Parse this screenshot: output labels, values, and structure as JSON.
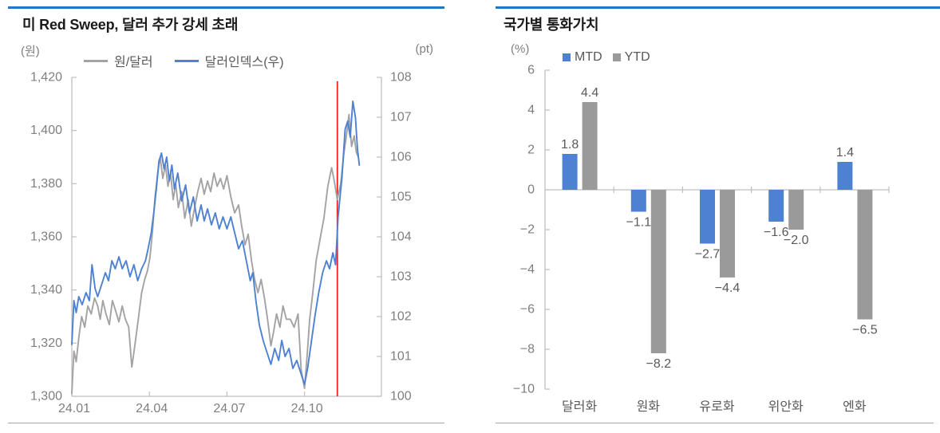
{
  "colors": {
    "accent_rule_blue": "#2577c4",
    "series_blue": "#4e81d2",
    "series_gray": "#9e9e9e",
    "annotation_red": "#ea2121",
    "axis_line": "#bfbfbf",
    "tick_label": "#7f7f7f",
    "value_label": "#595959"
  },
  "chart_data": [
    {
      "type": "line",
      "title": "미 Red Sweep, 달러 추가 강세 초래",
      "left_axis": {
        "unit": "(원)",
        "min": 1300,
        "max": 1420,
        "ticks": [
          [
            "1,420",
            1420
          ],
          [
            "1,400",
            1400
          ],
          [
            "1,380",
            1380
          ],
          [
            "1,360",
            1360
          ],
          [
            "1,340",
            1340
          ],
          [
            "1,320",
            1320
          ],
          [
            "1,300",
            1300
          ]
        ]
      },
      "right_axis": {
        "unit": "(pt)",
        "min": 100,
        "max": 108,
        "ticks": [
          [
            "108",
            108
          ],
          [
            "107",
            107
          ],
          [
            "106",
            106
          ],
          [
            "105",
            105
          ],
          [
            "104",
            104
          ],
          [
            "103",
            103
          ],
          [
            "102",
            102
          ],
          [
            "101",
            101
          ],
          [
            "100",
            100
          ]
        ]
      },
      "x_axis": {
        "ticks": [
          [
            "24.01",
            0
          ],
          [
            "24.04",
            3
          ],
          [
            "24.07",
            6
          ],
          [
            "24.10",
            9
          ]
        ]
      },
      "annotation_vline": {
        "t": 10.27,
        "color": "#ea2121"
      },
      "series": [
        {
          "name": "원/달러",
          "axis": "left",
          "color": "#a3a3a3",
          "points": [
            [
              0,
              1301
            ],
            [
              0.08,
              1317
            ],
            [
              0.17,
              1313
            ],
            [
              0.27,
              1322
            ],
            [
              0.38,
              1330
            ],
            [
              0.5,
              1326
            ],
            [
              0.62,
              1334
            ],
            [
              0.75,
              1331
            ],
            [
              0.88,
              1337
            ],
            [
              1.0,
              1334
            ],
            [
              1.1,
              1329
            ],
            [
              1.2,
              1336
            ],
            [
              1.32,
              1331
            ],
            [
              1.45,
              1327
            ],
            [
              1.57,
              1336
            ],
            [
              1.7,
              1332
            ],
            [
              1.82,
              1328
            ],
            [
              1.95,
              1334
            ],
            [
              2.07,
              1329
            ],
            [
              2.2,
              1326
            ],
            [
              2.32,
              1311
            ],
            [
              2.45,
              1320
            ],
            [
              2.57,
              1329
            ],
            [
              2.7,
              1339
            ],
            [
              2.82,
              1344
            ],
            [
              2.92,
              1347
            ],
            [
              3.02,
              1352
            ],
            [
              3.12,
              1362
            ],
            [
              3.22,
              1375
            ],
            [
              3.32,
              1384
            ],
            [
              3.42,
              1390
            ],
            [
              3.52,
              1382
            ],
            [
              3.62,
              1387
            ],
            [
              3.72,
              1379
            ],
            [
              3.82,
              1384
            ],
            [
              3.92,
              1374
            ],
            [
              4.02,
              1380
            ],
            [
              4.12,
              1371
            ],
            [
              4.25,
              1377
            ],
            [
              4.37,
              1367
            ],
            [
              4.5,
              1374
            ],
            [
              4.62,
              1364
            ],
            [
              4.75,
              1371
            ],
            [
              4.87,
              1377
            ],
            [
              5.0,
              1382
            ],
            [
              5.12,
              1376
            ],
            [
              5.25,
              1381
            ],
            [
              5.37,
              1377
            ],
            [
              5.5,
              1384
            ],
            [
              5.62,
              1379
            ],
            [
              5.75,
              1382
            ],
            [
              5.87,
              1378
            ],
            [
              6.0,
              1383
            ],
            [
              6.15,
              1375
            ],
            [
              6.3,
              1369
            ],
            [
              6.45,
              1372
            ],
            [
              6.57,
              1364
            ],
            [
              6.7,
              1357
            ],
            [
              6.82,
              1361
            ],
            [
              6.95,
              1351
            ],
            [
              7.07,
              1344
            ],
            [
              7.2,
              1339
            ],
            [
              7.32,
              1344
            ],
            [
              7.45,
              1337
            ],
            [
              7.57,
              1329
            ],
            [
              7.7,
              1319
            ],
            [
              7.8,
              1324
            ],
            [
              7.92,
              1331
            ],
            [
              8.05,
              1326
            ],
            [
              8.17,
              1334
            ],
            [
              8.3,
              1329
            ],
            [
              8.45,
              1329
            ],
            [
              8.6,
              1326
            ],
            [
              8.75,
              1331
            ],
            [
              8.87,
              1310
            ],
            [
              9.0,
              1303
            ],
            [
              9.1,
              1315
            ],
            [
              9.2,
              1329
            ],
            [
              9.32,
              1339
            ],
            [
              9.45,
              1351
            ],
            [
              9.6,
              1359
            ],
            [
              9.75,
              1367
            ],
            [
              9.9,
              1379
            ],
            [
              10.05,
              1386
            ],
            [
              10.15,
              1381
            ],
            [
              10.27,
              1374
            ],
            [
              10.4,
              1380
            ],
            [
              10.52,
              1391
            ],
            [
              10.62,
              1398
            ],
            [
              10.72,
              1406
            ],
            [
              10.82,
              1394
            ],
            [
              10.92,
              1398
            ],
            [
              11.0,
              1392
            ],
            [
              11.08,
              1390
            ]
          ]
        },
        {
          "name": "달러인덱스(우)",
          "axis": "right",
          "color": "#4e81d2",
          "points": [
            [
              0,
              101.3
            ],
            [
              0.08,
              102.4
            ],
            [
              0.17,
              102.1
            ],
            [
              0.27,
              102.5
            ],
            [
              0.4,
              102.3
            ],
            [
              0.55,
              102.6
            ],
            [
              0.68,
              102.4
            ],
            [
              0.78,
              103.3
            ],
            [
              0.9,
              102.7
            ],
            [
              1.0,
              102.5
            ],
            [
              1.15,
              102.8
            ],
            [
              1.3,
              103.1
            ],
            [
              1.42,
              102.9
            ],
            [
              1.55,
              103.4
            ],
            [
              1.68,
              103.2
            ],
            [
              1.82,
              103.5
            ],
            [
              1.95,
              103.2
            ],
            [
              2.1,
              103.4
            ],
            [
              2.25,
              103.0
            ],
            [
              2.4,
              103.3
            ],
            [
              2.55,
              102.9
            ],
            [
              2.7,
              103.2
            ],
            [
              2.85,
              103.4
            ],
            [
              2.95,
              103.7
            ],
            [
              3.07,
              104.1
            ],
            [
              3.17,
              104.6
            ],
            [
              3.27,
              105.2
            ],
            [
              3.37,
              105.9
            ],
            [
              3.47,
              106.1
            ],
            [
              3.57,
              105.7
            ],
            [
              3.67,
              106.0
            ],
            [
              3.77,
              105.4
            ],
            [
              3.87,
              105.8
            ],
            [
              3.97,
              105.2
            ],
            [
              4.1,
              105.6
            ],
            [
              4.25,
              104.9
            ],
            [
              4.4,
              105.3
            ],
            [
              4.55,
              104.6
            ],
            [
              4.7,
              105.0
            ],
            [
              4.85,
              104.4
            ],
            [
              5.0,
              104.8
            ],
            [
              5.12,
              104.4
            ],
            [
              5.25,
              104.7
            ],
            [
              5.4,
              104.3
            ],
            [
              5.55,
              104.6
            ],
            [
              5.7,
              104.2
            ],
            [
              5.85,
              104.5
            ],
            [
              6.0,
              104.2
            ],
            [
              6.15,
              104.5
            ],
            [
              6.3,
              104.1
            ],
            [
              6.45,
              103.7
            ],
            [
              6.6,
              103.9
            ],
            [
              6.75,
              103.4
            ],
            [
              6.9,
              102.9
            ],
            [
              7.0,
              103.1
            ],
            [
              7.12,
              102.4
            ],
            [
              7.25,
              101.8
            ],
            [
              7.4,
              101.4
            ],
            [
              7.55,
              101.1
            ],
            [
              7.7,
              100.8
            ],
            [
              7.85,
              101.2
            ],
            [
              8.0,
              100.9
            ],
            [
              8.12,
              101.4
            ],
            [
              8.25,
              101.0
            ],
            [
              8.4,
              101.2
            ],
            [
              8.55,
              100.7
            ],
            [
              8.7,
              100.9
            ],
            [
              8.85,
              100.6
            ],
            [
              9.0,
              100.3
            ],
            [
              9.12,
              100.7
            ],
            [
              9.25,
              101.3
            ],
            [
              9.4,
              102.0
            ],
            [
              9.55,
              102.6
            ],
            [
              9.7,
              103.1
            ],
            [
              9.85,
              103.4
            ],
            [
              9.97,
              103.2
            ],
            [
              10.1,
              103.6
            ],
            [
              10.2,
              103.3
            ],
            [
              10.3,
              104.5
            ],
            [
              10.45,
              105.5
            ],
            [
              10.57,
              106.7
            ],
            [
              10.67,
              106.9
            ],
            [
              10.77,
              106.5
            ],
            [
              10.87,
              107.4
            ],
            [
              10.97,
              107.0
            ],
            [
              11.05,
              106.2
            ],
            [
              11.12,
              105.8
            ]
          ]
        }
      ]
    },
    {
      "type": "bar",
      "title": "국가별 통화가치",
      "unit": "(%)",
      "categories": [
        "달러화",
        "원화",
        "유로화",
        "위안화",
        "엔화"
      ],
      "series": [
        {
          "name": "MTD",
          "color": "#4e81d2",
          "values": [
            1.8,
            -1.1,
            -2.7,
            -1.6,
            1.4
          ],
          "labels": [
            "1.8",
            "−1.1",
            "−2.7",
            "−1.6",
            "1.4"
          ]
        },
        {
          "name": "YTD",
          "color": "#9a9a9a",
          "values": [
            4.4,
            -8.2,
            -4.4,
            -2.0,
            -6.5
          ],
          "labels": [
            "4.4",
            "−8.2",
            "−4.4",
            "−2.0",
            "−6.5"
          ]
        }
      ],
      "ylim": [
        -10,
        6
      ],
      "yticks": [
        [
          "6",
          6
        ],
        [
          "4",
          4
        ],
        [
          "2",
          2
        ],
        [
          "0",
          0
        ],
        [
          "−2",
          -2
        ],
        [
          "−4",
          -4
        ],
        [
          "−6",
          -6
        ],
        [
          "−8",
          -8
        ],
        [
          "−10",
          -10
        ]
      ]
    }
  ]
}
